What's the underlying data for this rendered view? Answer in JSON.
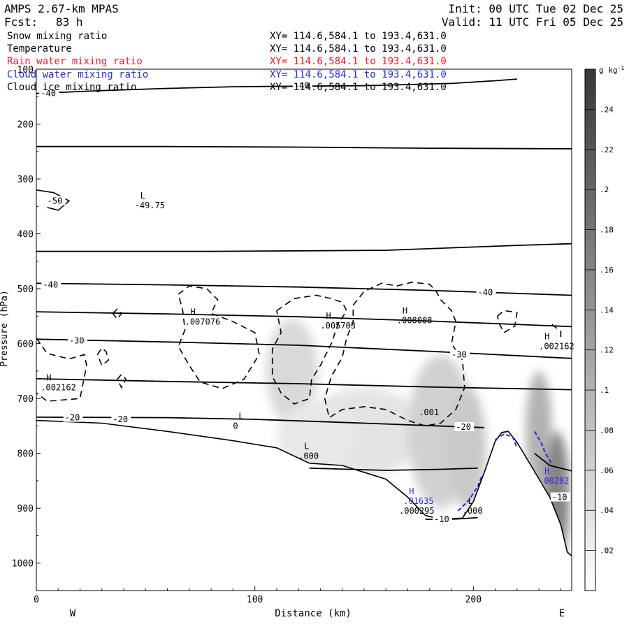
{
  "header": {
    "title": "AMPS 2.67-km MPAS",
    "fcst_label": "Fcst:",
    "fcst_value": "83 h",
    "init": "Init: 00 UTC Tue 02 Dec 25",
    "valid": "Valid: 11 UTC Fri 05 Dec 25"
  },
  "layers": [
    {
      "name": "Snow mixing ratio",
      "xy": "XY= 114.6,584.1 to 193.4,631.0",
      "color": "#000000"
    },
    {
      "name": "Temperature",
      "xy": "XY= 114.6,584.1 to 193.4,631.0",
      "color": "#000000"
    },
    {
      "name": "Rain water mixing ratio",
      "xy": "XY= 114.6,584.1 to 193.4,631.0",
      "color": "#e8202a"
    },
    {
      "name": "Cloud water mixing ratio",
      "xy": "XY= 114.6,584.1 to 193.4,631.0",
      "color": "#2a2ad8"
    },
    {
      "name": "Cloud ice mixing ratio",
      "xy": "XY= 114.6,584.1 to 193.4,631.0",
      "color": "#000000"
    }
  ],
  "chart_data": {
    "type": "cross-section contour",
    "xlabel": "Distance (km)",
    "ylabel": "Pressure (hPa)",
    "x_ticks": [
      "0",
      "100",
      "200"
    ],
    "x_tick_values": [
      0,
      100,
      200
    ],
    "y_ticks": [
      "100",
      "200",
      "300",
      "400",
      "500",
      "600",
      "700",
      "800",
      "900",
      "1000"
    ],
    "y_tick_values": [
      100,
      200,
      300,
      400,
      500,
      600,
      700,
      800,
      900,
      1000
    ],
    "xlim": [
      0,
      245
    ],
    "ylim_hpa": [
      1050,
      100
    ],
    "y_scale": "linear",
    "left_end_label": "W",
    "right_end_label": "E",
    "colorbar": {
      "unit": "g kg",
      "unit_exp": "-1",
      "labels": [
        ".02",
        ".04",
        ".06",
        ".08",
        ".1",
        ".12",
        ".14",
        ".16",
        ".18",
        ".2",
        ".22",
        ".24"
      ],
      "levels": [
        0.02,
        0.04,
        0.06,
        0.08,
        0.1,
        0.12,
        0.14,
        0.16,
        0.18,
        0.2,
        0.22,
        0.24
      ],
      "range": [
        0,
        0.26
      ]
    },
    "temperature_contours": [
      {
        "label": "-40",
        "points": [
          [
            0,
            144
          ],
          [
            30,
            139
          ],
          [
            60,
            135
          ],
          [
            90,
            132
          ],
          [
            120,
            131
          ],
          [
            150,
            130
          ],
          [
            170,
            128
          ],
          [
            190,
            126
          ],
          [
            210,
            121
          ],
          [
            220,
            118
          ]
        ]
      },
      {
        "label": "",
        "points": [
          [
            0,
            241
          ],
          [
            60,
            241
          ],
          [
            120,
            242
          ],
          [
            180,
            244
          ],
          [
            245,
            245
          ]
        ]
      },
      {
        "label": "",
        "points": [
          [
            0,
            432
          ],
          [
            80,
            432
          ],
          [
            160,
            430
          ],
          [
            220,
            421
          ],
          [
            245,
            418
          ]
        ]
      },
      {
        "label": "-40",
        "points": [
          [
            0,
            490
          ],
          [
            60,
            493
          ],
          [
            120,
            497
          ],
          [
            180,
            503
          ],
          [
            245,
            512
          ]
        ]
      },
      {
        "label": "",
        "points": [
          [
            0,
            542
          ],
          [
            60,
            546
          ],
          [
            120,
            551
          ],
          [
            180,
            559
          ],
          [
            245,
            569
          ]
        ]
      },
      {
        "label": "-30",
        "points": [
          [
            0,
            592
          ],
          [
            60,
            597
          ],
          [
            120,
            603
          ],
          [
            180,
            614
          ],
          [
            245,
            627
          ]
        ]
      },
      {
        "label": "",
        "points": [
          [
            0,
            664
          ],
          [
            60,
            669
          ],
          [
            120,
            673
          ],
          [
            180,
            679
          ],
          [
            245,
            684
          ]
        ]
      },
      {
        "label": "-20",
        "points": [
          [
            0,
            734
          ],
          [
            60,
            735
          ],
          [
            100,
            738
          ],
          [
            150,
            745
          ],
          [
            190,
            751
          ],
          [
            205,
            753
          ]
        ]
      },
      {
        "label": "",
        "points": [
          [
            125,
            827
          ],
          [
            160,
            831
          ],
          [
            185,
            829
          ],
          [
            202,
            827
          ]
        ]
      },
      {
        "label": "-10",
        "points": [
          [
            178,
            920
          ],
          [
            185,
            921
          ],
          [
            195,
            919
          ],
          [
            202,
            917
          ]
        ]
      },
      {
        "label": "-10",
        "points": [
          [
            228,
            800
          ],
          [
            235,
            822
          ],
          [
            245,
            832
          ]
        ]
      }
    ],
    "temperature_labels": [
      {
        "text": "-40",
        "x": 2,
        "p": 144
      },
      {
        "text": "-50",
        "x": 5,
        "p": 340
      },
      {
        "text": "-40",
        "x": 3,
        "p": 493
      },
      {
        "text": "-40",
        "x": 202,
        "p": 507
      },
      {
        "text": "-30",
        "x": 15,
        "p": 595
      },
      {
        "text": "-30",
        "x": 190,
        "p": 620
      },
      {
        "text": "-20",
        "x": 13,
        "p": 735
      },
      {
        "text": "-20",
        "x": 35,
        "p": 738
      },
      {
        "text": "-20",
        "x": 192,
        "p": 752
      },
      {
        "text": "-10",
        "x": 182,
        "p": 920
      },
      {
        "text": "-10",
        "x": 236,
        "p": 880
      },
      {
        "text": "-40",
        "x": 118,
        "p": 130
      }
    ],
    "extrema": [
      {
        "mark": "L",
        "value": "-49.75",
        "x": 45,
        "p": 343
      },
      {
        "mark": "H",
        "value": ".007076",
        "x": 68,
        "p": 555
      },
      {
        "mark": "H",
        "value": ".005703",
        "x": 130,
        "p": 562
      },
      {
        "mark": "H",
        "value": ".008008",
        "x": 165,
        "p": 553
      },
      {
        "mark": "H",
        "value": ".002162",
        "x": 230,
        "p": 600
      },
      {
        "mark": "H",
        "value": ".002162",
        "x": 2,
        "p": 675
      },
      {
        "mark": "L",
        "value": "0",
        "x": 90,
        "p": 745
      },
      {
        "mark": "L",
        "value": ".000",
        "x": 120,
        "p": 800
      },
      {
        "mark": "",
        "value": ".001",
        "x": 175,
        "p": 720
      },
      {
        "mark": "H",
        "value": ".01635",
        "x": 168,
        "p": 882,
        "series": "Cloud water mixing ratio"
      },
      {
        "mark": "",
        "value": ".000295",
        "x": 166,
        "p": 900
      },
      {
        "mark": "L",
        "value": ".000",
        "x": 195,
        "p": 900
      },
      {
        "mark": "H",
        "value": ".00202",
        "x": 230,
        "p": 845,
        "series": "Cloud water mixing ratio"
      }
    ],
    "terrain": [
      [
        0,
        740
      ],
      [
        30,
        745
      ],
      [
        60,
        760
      ],
      [
        90,
        777
      ],
      [
        110,
        790
      ],
      [
        125,
        818
      ],
      [
        140,
        822
      ],
      [
        160,
        847
      ],
      [
        170,
        880
      ],
      [
        178,
        913
      ],
      [
        185,
        920
      ],
      [
        195,
        918
      ],
      [
        200,
        888
      ],
      [
        205,
        835
      ],
      [
        210,
        778
      ],
      [
        213,
        762
      ],
      [
        216,
        760
      ],
      [
        220,
        780
      ],
      [
        228,
        833
      ],
      [
        235,
        880
      ],
      [
        240,
        930
      ],
      [
        243,
        980
      ],
      [
        246,
        990
      ],
      [
        248,
        985
      ]
    ],
    "snow_shading": [
      {
        "x": 117,
        "p": 650,
        "rx": 12,
        "rp": 95,
        "value": 0.05
      },
      {
        "x": 150,
        "p": 760,
        "rx": 28,
        "rp": 80,
        "value": 0.035
      },
      {
        "x": 185,
        "p": 760,
        "rx": 15,
        "rp": 140,
        "value": 0.06
      },
      {
        "x": 197,
        "p": 790,
        "rx": 9,
        "rp": 110,
        "value": 0.07
      },
      {
        "x": 128,
        "p": 770,
        "rx": 18,
        "rp": 60,
        "value": 0.03
      },
      {
        "x": 230,
        "p": 760,
        "rx": 6,
        "rp": 110,
        "value": 0.1
      },
      {
        "x": 238,
        "p": 880,
        "rx": 6,
        "rp": 120,
        "value": 0.16
      }
    ],
    "cloud_ice_dashed": [
      [
        [
          65,
          510
        ],
        [
          70,
          495
        ],
        [
          78,
          500
        ],
        [
          83,
          520
        ],
        [
          80,
          545
        ],
        [
          90,
          560
        ],
        [
          100,
          580
        ],
        [
          102,
          620
        ],
        [
          95,
          665
        ],
        [
          85,
          682
        ],
        [
          75,
          670
        ],
        [
          70,
          640
        ],
        [
          65,
          605
        ],
        [
          68,
          575
        ],
        [
          67,
          540
        ],
        [
          65,
          510
        ]
      ],
      [
        [
          110,
          540
        ],
        [
          118,
          518
        ],
        [
          128,
          512
        ],
        [
          135,
          518
        ],
        [
          140,
          525
        ],
        [
          142,
          540
        ],
        [
          138,
          565
        ],
        [
          135,
          600
        ],
        [
          130,
          640
        ],
        [
          126,
          665
        ],
        [
          125,
          700
        ],
        [
          118,
          710
        ],
        [
          112,
          690
        ],
        [
          108,
          660
        ],
        [
          108,
          610
        ],
        [
          112,
          580
        ],
        [
          110,
          540
        ]
      ],
      [
        [
          145,
          530
        ],
        [
          150,
          505
        ],
        [
          158,
          490
        ],
        [
          165,
          495
        ],
        [
          172,
          488
        ],
        [
          180,
          492
        ],
        [
          183,
          505
        ],
        [
          185,
          520
        ],
        [
          190,
          540
        ],
        [
          192,
          560
        ],
        [
          190,
          600
        ],
        [
          195,
          630
        ],
        [
          196,
          680
        ],
        [
          192,
          720
        ],
        [
          185,
          745
        ],
        [
          178,
          750
        ],
        [
          170,
          740
        ],
        [
          160,
          720
        ],
        [
          150,
          715
        ],
        [
          140,
          720
        ],
        [
          134,
          735
        ],
        [
          132,
          700
        ],
        [
          135,
          660
        ],
        [
          140,
          625
        ],
        [
          142,
          590
        ],
        [
          145,
          560
        ],
        [
          145,
          530
        ]
      ],
      [
        [
          211,
          550
        ],
        [
          214,
          540
        ],
        [
          220,
          543
        ],
        [
          219,
          568
        ],
        [
          214,
          580
        ],
        [
          212,
          565
        ],
        [
          211,
          550
        ]
      ],
      [
        [
          236,
          565
        ],
        [
          240,
          578
        ],
        [
          240,
          595
        ]
      ],
      [
        [
          35,
          545
        ],
        [
          37,
          537
        ],
        [
          39,
          545
        ],
        [
          37,
          555
        ],
        [
          35,
          545
        ]
      ],
      [
        [
          37,
          665
        ],
        [
          39,
          656
        ],
        [
          41,
          665
        ],
        [
          39,
          680
        ],
        [
          37,
          665
        ]
      ],
      [
        [
          28,
          620
        ],
        [
          30,
          608
        ],
        [
          32,
          615
        ],
        [
          33,
          630
        ],
        [
          30,
          640
        ],
        [
          28,
          620
        ]
      ],
      [
        [
          0,
          590
        ],
        [
          5,
          618
        ],
        [
          15,
          628
        ],
        [
          22,
          620
        ],
        [
          23,
          640
        ],
        [
          20,
          700
        ],
        [
          5,
          705
        ],
        [
          0,
          690
        ]
      ]
    ],
    "cloud_water_blue": [
      [
        [
          193,
          905
        ],
        [
          198,
          885
        ],
        [
          202,
          860
        ],
        [
          204,
          840
        ]
      ],
      [
        [
          210,
          775
        ],
        [
          214,
          765
        ],
        [
          218,
          770
        ],
        [
          220,
          790
        ]
      ],
      [
        [
          228,
          760
        ],
        [
          231,
          780
        ],
        [
          233,
          800
        ],
        [
          236,
          820
        ]
      ]
    ]
  }
}
